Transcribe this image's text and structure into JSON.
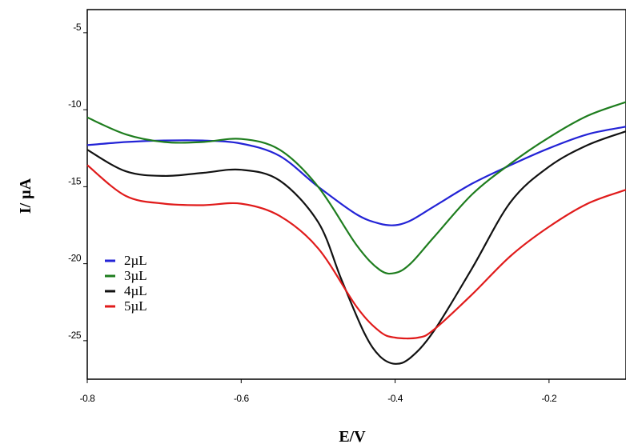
{
  "chart_data": {
    "type": "line",
    "title": "",
    "xlabel": "E/V",
    "ylabel": "I/ µA",
    "xlim": [
      -0.8,
      -0.1
    ],
    "ylim": [
      -27.5,
      -3.5
    ],
    "x_ticks": [
      -0.8,
      -0.6,
      -0.4,
      -0.2
    ],
    "x_tick_labels": [
      "-0.8",
      "-0.6",
      "-0.4",
      "-0.2"
    ],
    "y_ticks": [
      -5,
      -10,
      -15,
      -20,
      -25
    ],
    "y_tick_labels": [
      "-5",
      "-10",
      "-15",
      "-20",
      "-25"
    ],
    "grid": false,
    "legend_position": "left",
    "series": [
      {
        "name": "2µL",
        "color": "#2323d6",
        "x": [
          -0.8,
          -0.75,
          -0.7,
          -0.65,
          -0.6,
          -0.55,
          -0.5,
          -0.45,
          -0.42,
          -0.4,
          -0.38,
          -0.35,
          -0.3,
          -0.25,
          -0.2,
          -0.15,
          -0.1
        ],
        "y": [
          -12.3,
          -12.1,
          -12.0,
          -12.0,
          -12.2,
          -13.0,
          -15.0,
          -16.8,
          -17.4,
          -17.5,
          -17.2,
          -16.3,
          -14.8,
          -13.6,
          -12.5,
          -11.6,
          -11.1
        ]
      },
      {
        "name": "3µL",
        "color": "#1e7d1e",
        "x": [
          -0.8,
          -0.75,
          -0.7,
          -0.65,
          -0.6,
          -0.55,
          -0.5,
          -0.45,
          -0.42,
          -0.4,
          -0.38,
          -0.35,
          -0.3,
          -0.25,
          -0.2,
          -0.15,
          -0.1
        ],
        "y": [
          -10.5,
          -11.6,
          -12.1,
          -12.1,
          -11.9,
          -12.6,
          -15.0,
          -18.8,
          -20.4,
          -20.6,
          -20.0,
          -18.3,
          -15.5,
          -13.5,
          -11.8,
          -10.4,
          -9.5
        ]
      },
      {
        "name": "4µL",
        "color": "#111111",
        "x": [
          -0.8,
          -0.75,
          -0.7,
          -0.65,
          -0.6,
          -0.55,
          -0.5,
          -0.47,
          -0.44,
          -0.42,
          -0.4,
          -0.38,
          -0.35,
          -0.3,
          -0.25,
          -0.2,
          -0.15,
          -0.1
        ],
        "y": [
          -12.6,
          -14.0,
          -14.3,
          -14.1,
          -13.9,
          -14.6,
          -17.3,
          -21.0,
          -24.5,
          -26.0,
          -26.5,
          -26.1,
          -24.4,
          -20.3,
          -16.0,
          -13.7,
          -12.3,
          -11.4
        ]
      },
      {
        "name": "5µL",
        "color": "#e01b1b",
        "x": [
          -0.8,
          -0.75,
          -0.7,
          -0.65,
          -0.6,
          -0.55,
          -0.5,
          -0.45,
          -0.42,
          -0.4,
          -0.37,
          -0.35,
          -0.3,
          -0.25,
          -0.2,
          -0.15,
          -0.1
        ],
        "y": [
          -13.6,
          -15.6,
          -16.1,
          -16.2,
          -16.1,
          -16.9,
          -19.0,
          -22.8,
          -24.4,
          -24.8,
          -24.8,
          -24.3,
          -22.0,
          -19.5,
          -17.6,
          -16.1,
          -15.2
        ]
      }
    ]
  }
}
